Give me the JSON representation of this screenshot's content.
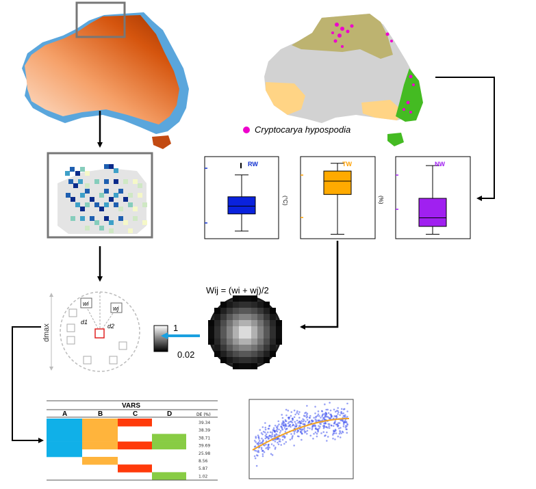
{
  "species_legend": {
    "label": "Cryptocarya hypospodia",
    "color": "#ee00cc"
  },
  "boxplots": [
    {
      "id": "rw",
      "label": "RW",
      "label_color": "#1030d0",
      "fill": "#0a22dd",
      "unit": "(°C)",
      "stats": {
        "min": 0.08,
        "q1": 0.3,
        "median": 0.4,
        "q3": 0.52,
        "max": 0.8,
        "outlier": 0.92
      }
    },
    {
      "id": "tw",
      "label": "TW",
      "label_color": "#ffa000",
      "fill": "#ffaa00",
      "unit": "(%)",
      "stats": {
        "min": 0.04,
        "q1": 0.55,
        "median": 0.72,
        "q3": 0.85,
        "max": 0.95
      }
    },
    {
      "id": "nw",
      "label": "NW",
      "label_color": "#a020f0",
      "fill": "#a020f0",
      "unit": "",
      "stats": {
        "min": 0.04,
        "q1": 0.14,
        "median": 0.25,
        "q3": 0.5,
        "max": 0.92
      }
    }
  ],
  "kernel": {
    "formula": "Wij = (wi + wj)/2"
  },
  "weight_scale": {
    "max_label": "1",
    "min_label": "0.02",
    "arrow_color": "#1aa0e0"
  },
  "neighborhood": {
    "axis_label": "dmax",
    "wi": "wi",
    "wj": "wj",
    "d1": "d1",
    "d2": "d2"
  },
  "vars_table": {
    "title": "VARS",
    "columns": [
      "A",
      "B",
      "C",
      "D"
    ],
    "de_header": "DE (%)",
    "de_values": [
      "39.34",
      "38.39",
      "38.71",
      "39.69",
      "25.98",
      "8.56",
      "5.87",
      "1.02"
    ],
    "colors": {
      "A": "#10b0e8",
      "B": "#ffb43c",
      "C": "#ff3a0a",
      "D": "#88cc44"
    },
    "cells": [
      [
        1,
        1,
        1,
        0
      ],
      [
        1,
        1,
        0,
        0
      ],
      [
        1,
        1,
        0,
        1
      ],
      [
        1,
        1,
        1,
        1
      ],
      [
        1,
        0,
        0,
        0
      ],
      [
        0,
        1,
        0,
        0
      ],
      [
        0,
        0,
        1,
        0
      ],
      [
        0,
        0,
        0,
        1
      ]
    ]
  },
  "scatter": {
    "point_color": "#4455ee",
    "curve_color": "#f0a020"
  }
}
